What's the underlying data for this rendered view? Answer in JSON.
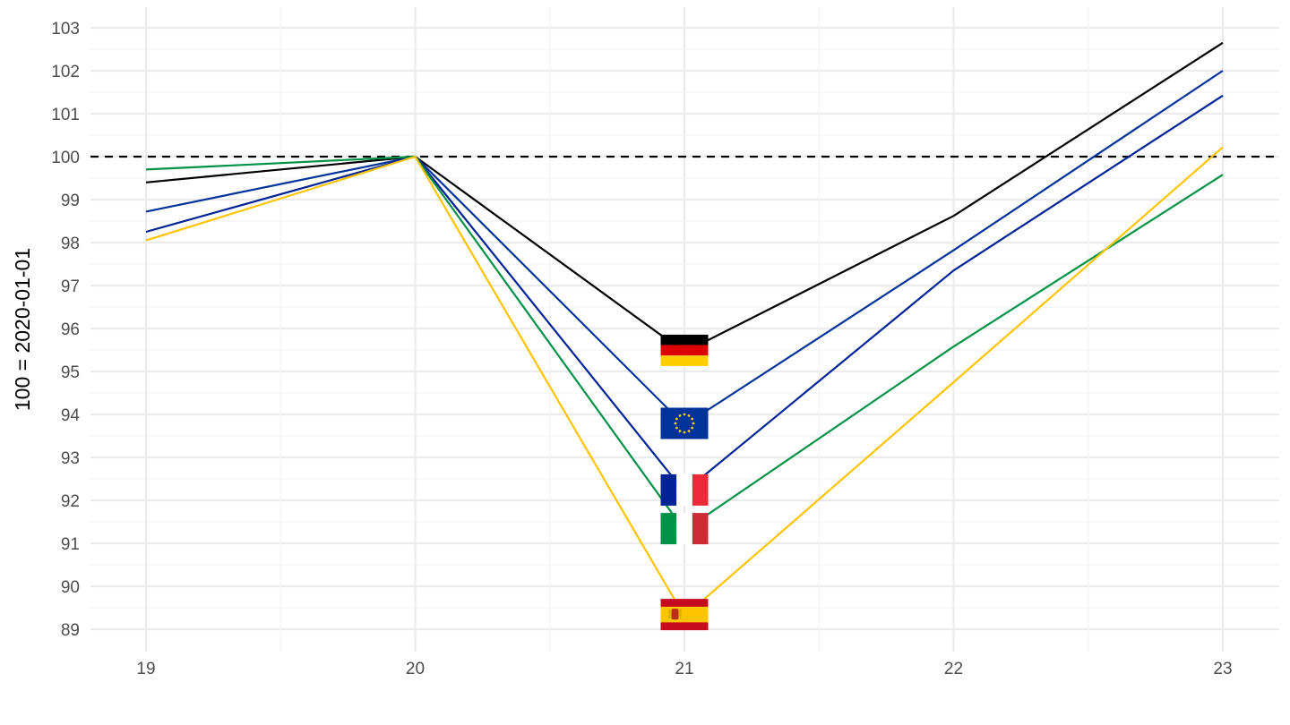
{
  "chart_data": {
    "type": "line",
    "title": "",
    "xlabel": "",
    "ylabel": "100 = 2020-01-01",
    "x": [
      19,
      20,
      21,
      22,
      23
    ],
    "x_ticks": [
      "19",
      "20",
      "21",
      "22",
      "23"
    ],
    "xlim": [
      18.8,
      23.2
    ],
    "ylim": [
      88.7,
      103.3
    ],
    "y_ticks": [
      "89",
      "90",
      "91",
      "92",
      "93",
      "94",
      "95",
      "96",
      "97",
      "98",
      "99",
      "100",
      "101",
      "102",
      "103"
    ],
    "grid": true,
    "reference_line": {
      "y": 100,
      "style": "dashed"
    },
    "series": [
      {
        "country": "Germany",
        "flag": "flag-germany",
        "color": "#000000",
        "values": [
          99.4,
          100.0,
          95.45,
          98.62,
          102.65
        ]
      },
      {
        "country": "Euro area",
        "flag": "flag-eu",
        "color": "#003399",
        "values": [
          98.72,
          100.0,
          93.75,
          97.82,
          102.0
        ]
      },
      {
        "country": "France",
        "flag": "flag-france",
        "color": "#002395",
        "values": [
          98.25,
          100.0,
          92.2,
          97.35,
          101.42
        ]
      },
      {
        "country": "Italy",
        "flag": "flag-italy",
        "color": "#009246",
        "values": [
          99.7,
          100.0,
          91.3,
          95.58,
          99.58
        ]
      },
      {
        "country": "Spain",
        "flag": "flag-spain",
        "color": "#FFC400",
        "values": [
          98.05,
          100.0,
          89.3,
          94.75,
          100.22
        ]
      }
    ]
  }
}
